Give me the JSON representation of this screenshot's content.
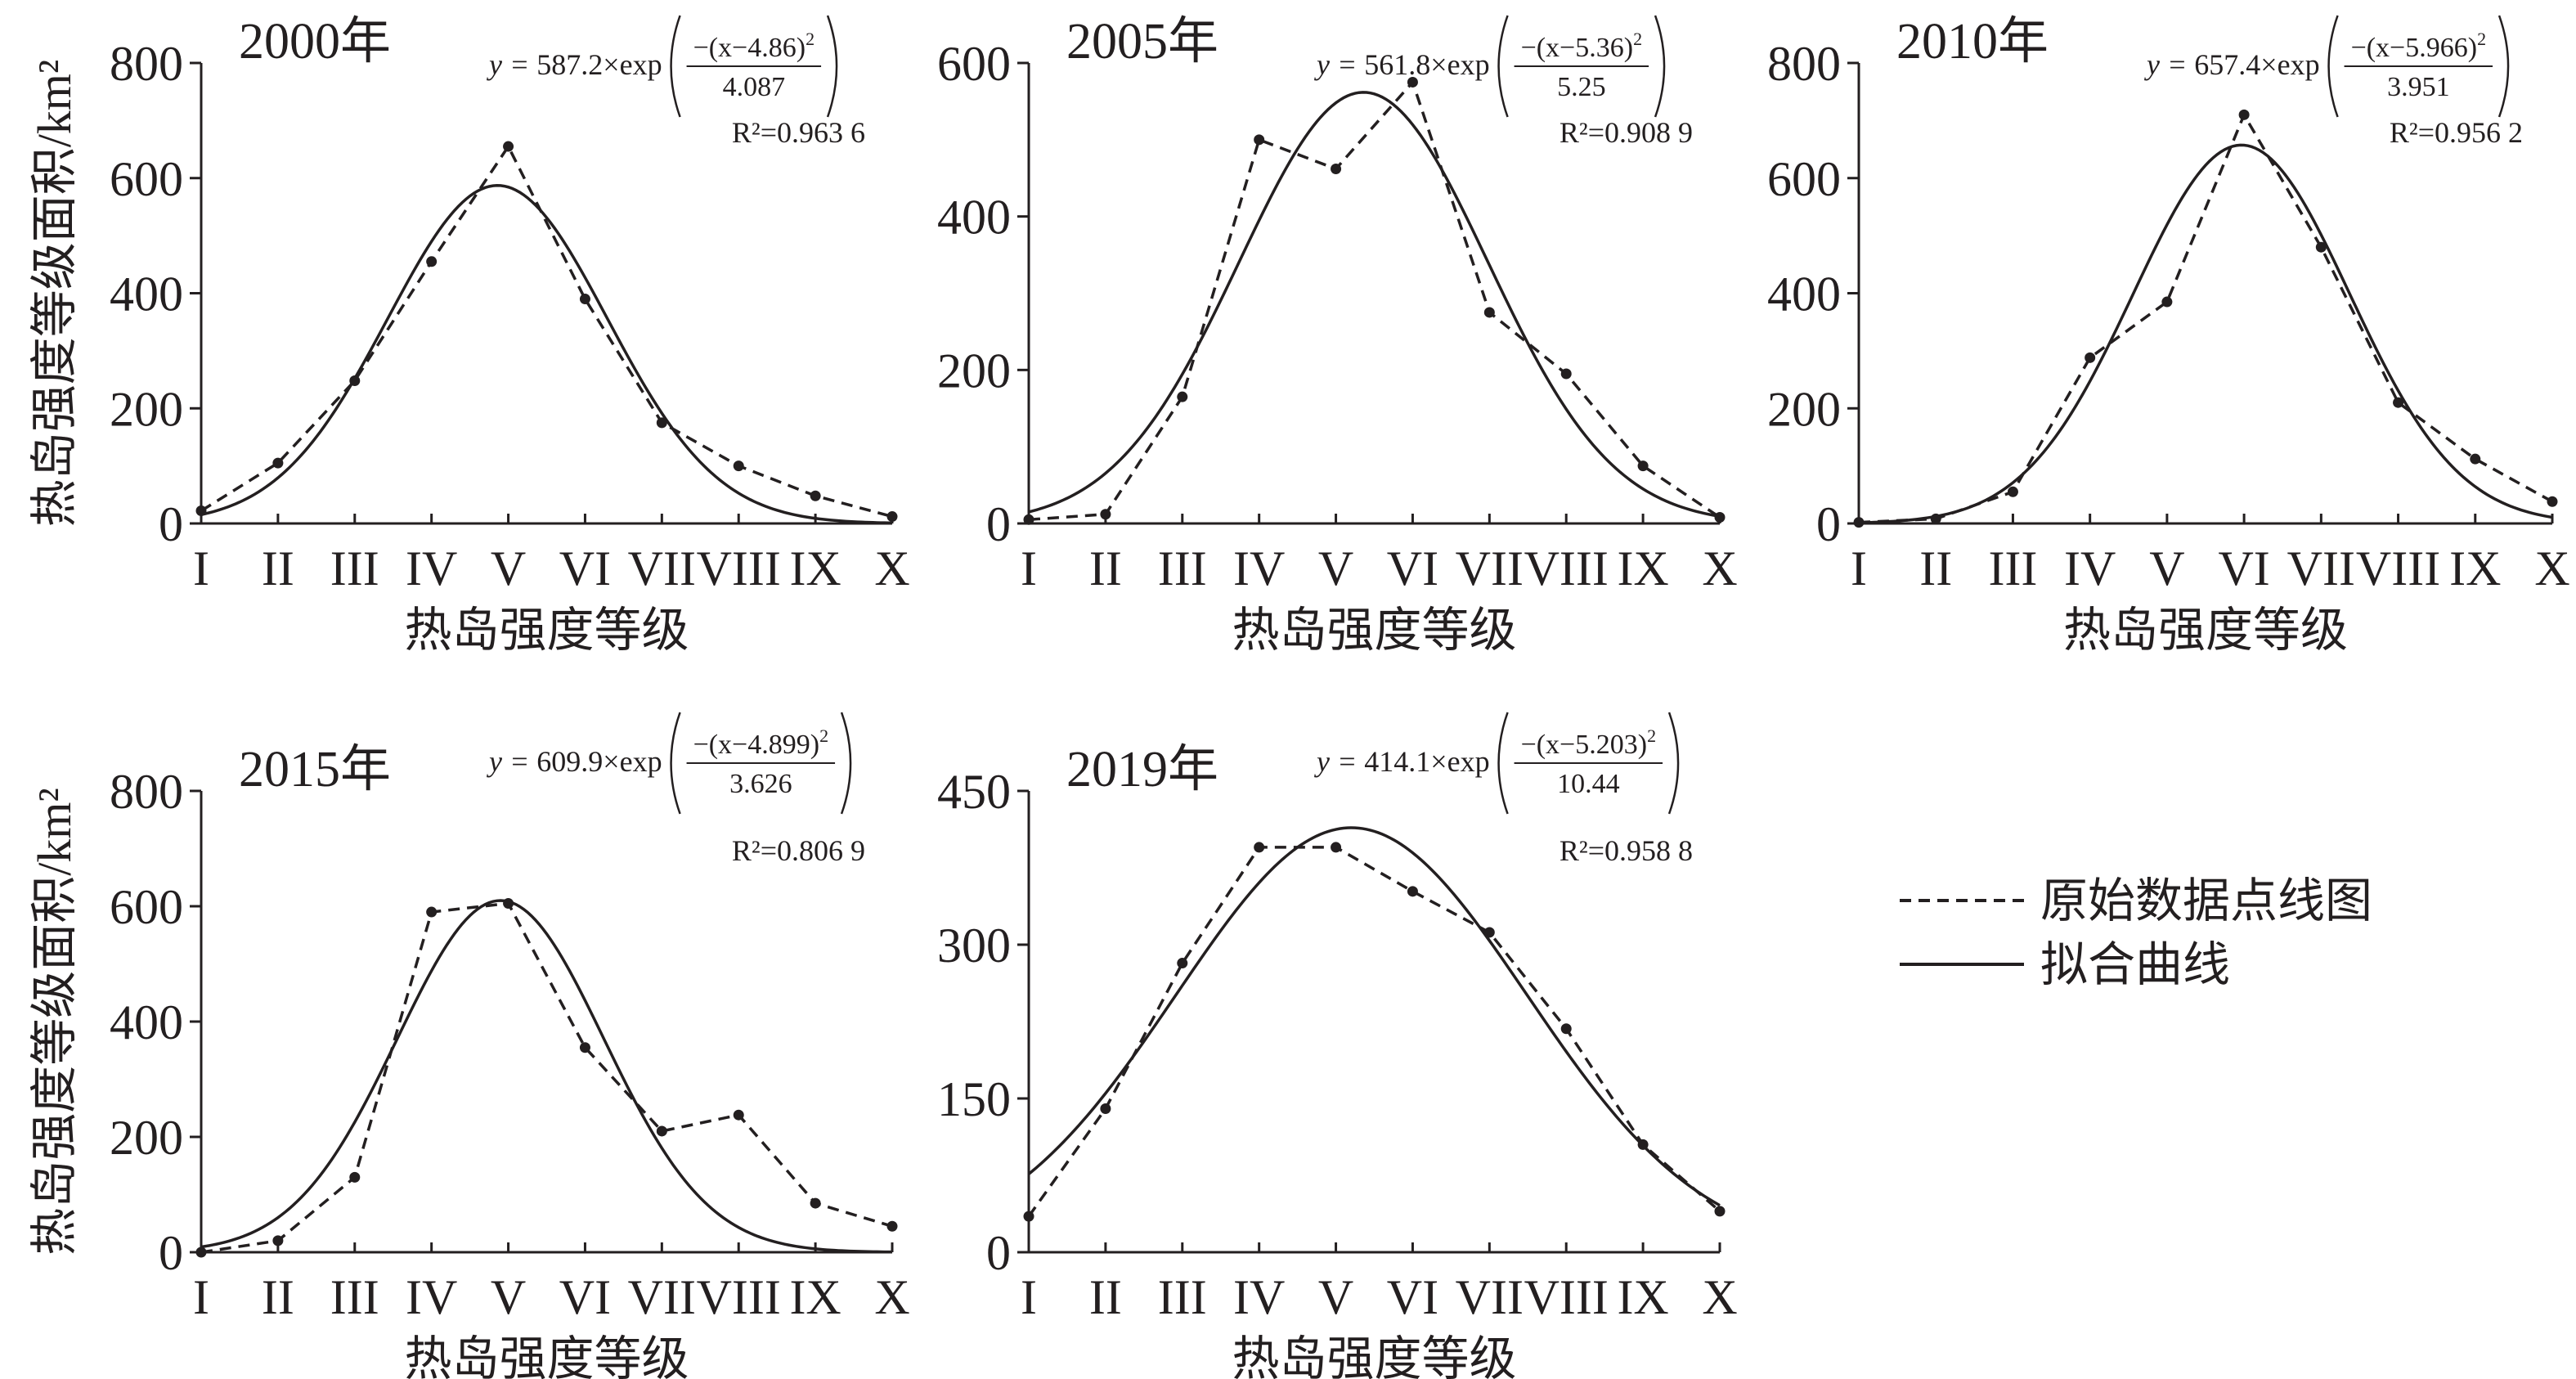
{
  "equation": {
    "lhs": "y = ",
    "exp": "×exp",
    "num_open": "−(x−",
    "num_close": ")",
    "power": "2"
  },
  "chart_data": [
    {
      "type": "line",
      "title": "2000年",
      "xlabel": "热岛强度等级",
      "ylabel": "热岛强度等级面积/km²",
      "categories": [
        "I",
        "II",
        "III",
        "IV",
        "V",
        "VI",
        "VII",
        "VIII",
        "IX",
        "X"
      ],
      "ylim": [
        0,
        800
      ],
      "yticks": [
        0,
        200,
        400,
        600,
        800
      ],
      "r2_label": "R²=0.963 6",
      "series": [
        {
          "name": "原始数据点线图",
          "color": "#231f20",
          "line_style": "dashed",
          "markers": true,
          "values": [
            22,
            105,
            248,
            455,
            655,
            390,
            175,
            100,
            48,
            12
          ]
        },
        {
          "name": "拟合曲线",
          "color": "#231f20",
          "line_style": "solid",
          "fit": {
            "a": 587.2,
            "mu": 4.86,
            "s": 4.087
          }
        }
      ]
    },
    {
      "type": "line",
      "title": "2005年",
      "xlabel": "热岛强度等级",
      "categories": [
        "I",
        "II",
        "III",
        "IV",
        "V",
        "VI",
        "VII",
        "VIII",
        "IX",
        "X"
      ],
      "ylim": [
        0,
        600
      ],
      "yticks": [
        0,
        200,
        400,
        600
      ],
      "r2_label": "R²=0.908 9",
      "series": [
        {
          "name": "原始数据点线图",
          "color": "#231f20",
          "line_style": "dashed",
          "markers": true,
          "values": [
            5,
            12,
            165,
            500,
            462,
            575,
            275,
            195,
            75,
            8
          ]
        },
        {
          "name": "拟合曲线",
          "color": "#231f20",
          "line_style": "solid",
          "fit": {
            "a": 561.8,
            "mu": 5.36,
            "s": 5.25
          }
        }
      ]
    },
    {
      "type": "line",
      "title": "2010年",
      "xlabel": "热岛强度等级",
      "categories": [
        "I",
        "II",
        "III",
        "IV",
        "V",
        "VI",
        "VII",
        "VIII",
        "IX",
        "X"
      ],
      "ylim": [
        0,
        800
      ],
      "yticks": [
        0,
        200,
        400,
        600,
        800
      ],
      "r2_label": "R²=0.956 2",
      "series": [
        {
          "name": "原始数据点线图",
          "color": "#231f20",
          "line_style": "dashed",
          "markers": true,
          "values": [
            2,
            8,
            55,
            288,
            385,
            710,
            480,
            210,
            112,
            38
          ]
        },
        {
          "name": "拟合曲线",
          "color": "#231f20",
          "line_style": "solid",
          "fit": {
            "a": 657.4,
            "mu": 5.966,
            "s": 3.951
          }
        }
      ]
    },
    {
      "type": "line",
      "title": "2015年",
      "xlabel": "热岛强度等级",
      "ylabel": "热岛强度等级面积/km²",
      "categories": [
        "I",
        "II",
        "III",
        "IV",
        "V",
        "VI",
        "VII",
        "VIII",
        "IX",
        "X"
      ],
      "ylim": [
        0,
        800
      ],
      "yticks": [
        0,
        200,
        400,
        600,
        800
      ],
      "r2_label": "R²=0.806 9",
      "series": [
        {
          "name": "原始数据点线图",
          "color": "#231f20",
          "line_style": "dashed",
          "markers": true,
          "values": [
            0,
            20,
            130,
            590,
            605,
            355,
            210,
            238,
            85,
            45
          ]
        },
        {
          "name": "拟合曲线",
          "color": "#231f20",
          "line_style": "solid",
          "fit": {
            "a": 609.9,
            "mu": 4.899,
            "s": 3.626
          }
        }
      ]
    },
    {
      "type": "line",
      "title": "2019年",
      "xlabel": "热岛强度等级",
      "categories": [
        "I",
        "II",
        "III",
        "IV",
        "V",
        "VI",
        "VII",
        "VIII",
        "IX",
        "X"
      ],
      "ylim": [
        0,
        450
      ],
      "yticks": [
        0,
        150,
        300,
        450
      ],
      "r2_label": "R²=0.958 8",
      "series": [
        {
          "name": "原始数据点线图",
          "color": "#231f20",
          "line_style": "dashed",
          "markers": true,
          "values": [
            35,
            140,
            282,
            395,
            395,
            352,
            312,
            218,
            105,
            40
          ]
        },
        {
          "name": "拟合曲线",
          "color": "#231f20",
          "line_style": "solid",
          "fit": {
            "a": 414.1,
            "mu": 5.203,
            "s": 10.44
          }
        }
      ]
    }
  ]
}
